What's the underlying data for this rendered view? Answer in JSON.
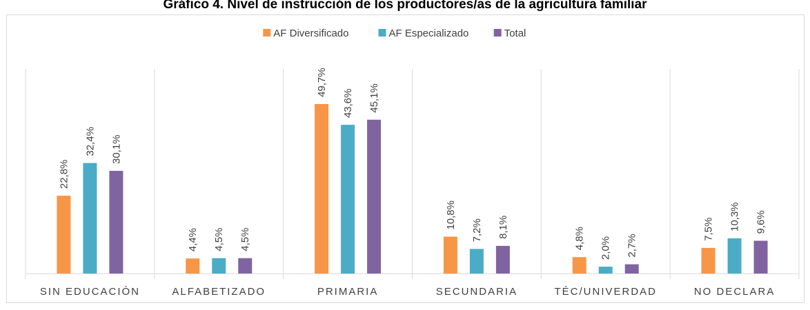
{
  "chart_data": {
    "type": "bar",
    "title": "Gráfico 4. Nivel de instrucción de los productores/as de la agricultura familiar",
    "categories": [
      "SIN EDUCACIÓN",
      "ALFABETIZADO",
      "PRIMARIA",
      "SECUNDARIA",
      "TÉC/UNIVERDAD",
      "NO DECLARA"
    ],
    "series": [
      {
        "name": "AF Diversificado",
        "color": "#f79646",
        "values": [
          22.8,
          4.4,
          49.7,
          10.8,
          4.8,
          7.5
        ],
        "value_labels": [
          "22,8%",
          "4,4%",
          "49,7%",
          "10,8%",
          "4,8%",
          "7,5%"
        ]
      },
      {
        "name": "AF Especializado",
        "color": "#4bacc6",
        "values": [
          32.4,
          4.5,
          43.6,
          7.2,
          2.0,
          10.3
        ],
        "value_labels": [
          "32,4%",
          "4,5%",
          "43,6%",
          "7,2%",
          "2,0%",
          "10,3%"
        ]
      },
      {
        "name": "Total",
        "color": "#8064a2",
        "values": [
          30.1,
          4.5,
          45.1,
          8.1,
          2.7,
          9.6
        ],
        "value_labels": [
          "30,1%",
          "4,5%",
          "45,1%",
          "8,1%",
          "2,7%",
          "9,6%"
        ]
      }
    ],
    "ylim": [
      0,
      60
    ],
    "legend": "top"
  }
}
